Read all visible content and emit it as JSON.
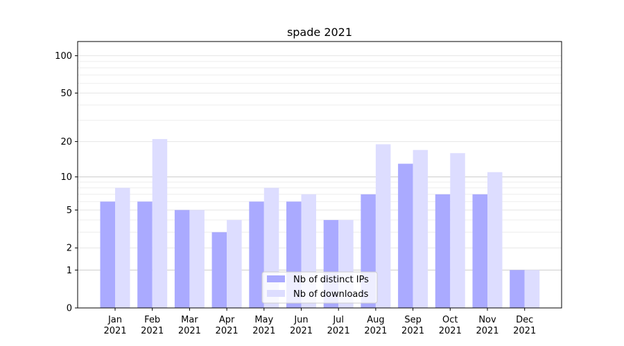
{
  "chart_data": {
    "type": "bar",
    "title": "spade 2021",
    "xlabel": "",
    "ylabel": "",
    "y_scale": "symlog",
    "ylim": [
      0,
      130
    ],
    "y_ticks": [
      0,
      1,
      2,
      5,
      10,
      20,
      50,
      100
    ],
    "categories": [
      {
        "month": "Jan",
        "year": "2021"
      },
      {
        "month": "Feb",
        "year": "2021"
      },
      {
        "month": "Mar",
        "year": "2021"
      },
      {
        "month": "Apr",
        "year": "2021"
      },
      {
        "month": "May",
        "year": "2021"
      },
      {
        "month": "Jun",
        "year": "2021"
      },
      {
        "month": "Jul",
        "year": "2021"
      },
      {
        "month": "Aug",
        "year": "2021"
      },
      {
        "month": "Sep",
        "year": "2021"
      },
      {
        "month": "Oct",
        "year": "2021"
      },
      {
        "month": "Nov",
        "year": "2021"
      },
      {
        "month": "Dec",
        "year": "2021"
      }
    ],
    "series": [
      {
        "name": "Nb of distinct IPs",
        "color": "#aaaaff",
        "values": [
          6,
          6,
          5,
          3,
          6,
          6,
          4,
          7,
          13,
          7,
          7,
          1
        ]
      },
      {
        "name": "Nb of downloads",
        "color": "#ddddff",
        "values": [
          8,
          21,
          5,
          4,
          8,
          7,
          4,
          19,
          17,
          16,
          11,
          1
        ]
      }
    ],
    "grid": "horizontal",
    "legend_position": "lower-center"
  }
}
